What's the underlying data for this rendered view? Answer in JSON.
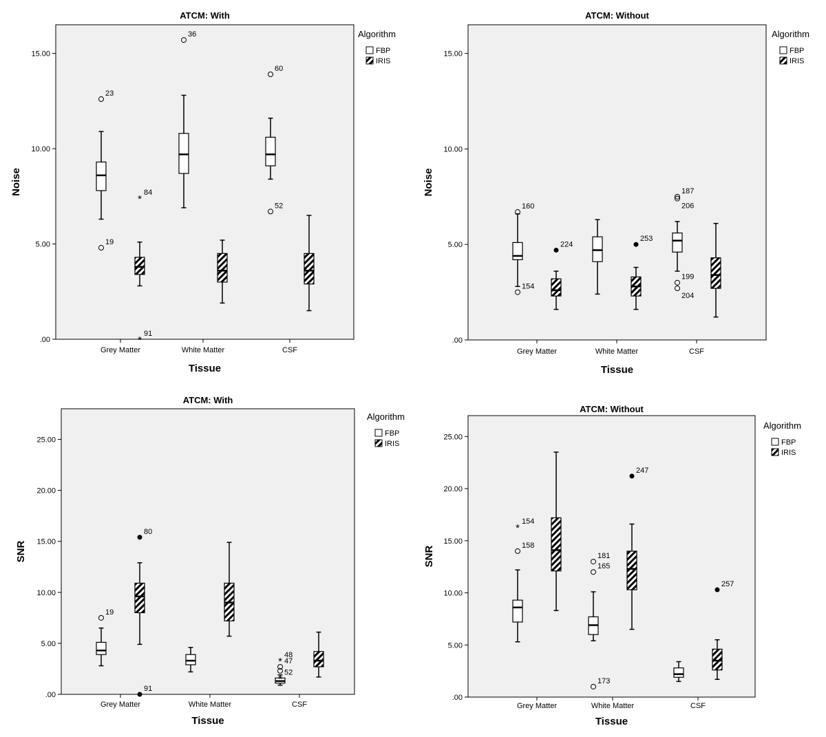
{
  "legend": {
    "title": "Algorithm",
    "items": [
      "FBP",
      "IRIS"
    ]
  },
  "chart_data": [
    {
      "type": "boxplot",
      "title": "ATCM: With",
      "xlabel": "Tissue",
      "ylabel": "Noise",
      "categories": [
        "Grey Matter",
        "White Matter",
        "CSF"
      ],
      "ylim": [
        0,
        16.5
      ],
      "yticks": [
        ".00",
        "5.00",
        "10.00",
        "15.00"
      ],
      "series": [
        {
          "name": "FBP",
          "boxes": [
            {
              "min": 6.3,
              "q1": 7.8,
              "median": 8.6,
              "q3": 9.3,
              "max": 10.9,
              "outliers": [
                {
                  "label": "23",
                  "value": 12.6,
                  "kind": "circle"
                },
                {
                  "label": "19",
                  "value": 4.8,
                  "kind": "circle"
                }
              ]
            },
            {
              "min": 6.9,
              "q1": 8.7,
              "median": 9.7,
              "q3": 10.8,
              "max": 12.8,
              "outliers": [
                {
                  "label": "36",
                  "value": 15.7,
                  "kind": "circle"
                }
              ]
            },
            {
              "min": 8.4,
              "q1": 9.1,
              "median": 9.7,
              "q3": 10.6,
              "max": 11.6,
              "outliers": [
                {
                  "label": "60",
                  "value": 13.9,
                  "kind": "circle"
                },
                {
                  "label": "52",
                  "value": 6.7,
                  "kind": "circle"
                }
              ]
            }
          ]
        },
        {
          "name": "IRIS",
          "boxes": [
            {
              "min": 2.8,
              "q1": 3.4,
              "median": 3.8,
              "q3": 4.3,
              "max": 5.1,
              "outliers": [
                {
                  "label": "84",
                  "value": 7.4,
                  "kind": "star"
                },
                {
                  "label": "91",
                  "value": 0.0,
                  "kind": "star"
                }
              ]
            },
            {
              "min": 1.9,
              "q1": 3.0,
              "median": 3.6,
              "q3": 4.5,
              "max": 5.2,
              "outliers": []
            },
            {
              "min": 1.5,
              "q1": 2.9,
              "median": 3.6,
              "q3": 4.5,
              "max": 6.5,
              "outliers": []
            }
          ]
        }
      ]
    },
    {
      "type": "boxplot",
      "title": "ATCM: Without",
      "xlabel": "Tissue",
      "ylabel": "Noise",
      "categories": [
        "Grey Matter",
        "White Matter",
        "CSF"
      ],
      "ylim": [
        0,
        16.5
      ],
      "yticks": [
        ".00",
        "5.00",
        "10.00",
        "15.00"
      ],
      "series": [
        {
          "name": "FBP",
          "boxes": [
            {
              "min": 2.8,
              "q1": 4.2,
              "median": 4.4,
              "q3": 5.1,
              "max": 6.6,
              "outliers": [
                {
                  "label": "160",
                  "value": 6.7,
                  "kind": "circle"
                },
                {
                  "label": "154",
                  "value": 2.5,
                  "kind": "circle"
                }
              ]
            },
            {
              "min": 2.4,
              "q1": 4.1,
              "median": 4.7,
              "q3": 5.4,
              "max": 6.3,
              "outliers": []
            },
            {
              "min": 3.6,
              "q1": 4.6,
              "median": 5.2,
              "q3": 5.6,
              "max": 6.2,
              "outliers": [
                {
                  "label": "187",
                  "value": 7.5,
                  "kind": "circle"
                },
                {
                  "label": "206",
                  "value": 7.4,
                  "kind": "circle"
                },
                {
                  "label": "199",
                  "value": 3.0,
                  "kind": "circle"
                },
                {
                  "label": "204",
                  "value": 2.7,
                  "kind": "circle"
                }
              ]
            }
          ]
        },
        {
          "name": "IRIS",
          "boxes": [
            {
              "min": 1.6,
              "q1": 2.3,
              "median": 2.6,
              "q3": 3.2,
              "max": 3.6,
              "outliers": [
                {
                  "label": "224",
                  "value": 4.7,
                  "kind": "dot"
                }
              ]
            },
            {
              "min": 1.6,
              "q1": 2.3,
              "median": 2.8,
              "q3": 3.3,
              "max": 3.8,
              "outliers": [
                {
                  "label": "253",
                  "value": 5.0,
                  "kind": "dot"
                }
              ]
            },
            {
              "min": 1.2,
              "q1": 2.7,
              "median": 3.4,
              "q3": 4.3,
              "max": 6.1,
              "outliers": []
            }
          ]
        }
      ]
    },
    {
      "type": "boxplot",
      "title": "ATCM: With",
      "xlabel": "Tissue",
      "ylabel": "SNR",
      "categories": [
        "Grey Matter",
        "White Matter",
        "CSF"
      ],
      "ylim": [
        0,
        28
      ],
      "yticks": [
        ".00",
        "5.00",
        "10.00",
        "15.00",
        "20.00",
        "25.00"
      ],
      "series": [
        {
          "name": "FBP",
          "boxes": [
            {
              "min": 2.8,
              "q1": 3.9,
              "median": 4.3,
              "q3": 5.1,
              "max": 6.5,
              "outliers": [
                {
                  "label": "19",
                  "value": 7.5,
                  "kind": "circle"
                }
              ]
            },
            {
              "min": 2.2,
              "q1": 2.9,
              "median": 3.3,
              "q3": 3.9,
              "max": 4.6,
              "outliers": []
            },
            {
              "min": 0.9,
              "q1": 1.1,
              "median": 1.3,
              "q3": 1.6,
              "max": 1.9,
              "outliers": [
                {
                  "label": "47",
                  "value": 2.7,
                  "kind": "circle"
                },
                {
                  "label": "",
                  "value": 2.3,
                  "kind": "circle"
                },
                {
                  "label": "48",
                  "value": 3.3,
                  "kind": "star"
                },
                {
                  "label": "52",
                  "value": 1.6,
                  "kind": "star"
                }
              ]
            }
          ]
        },
        {
          "name": "IRIS",
          "boxes": [
            {
              "min": 4.9,
              "q1": 8.0,
              "median": 9.6,
              "q3": 10.9,
              "max": 12.9,
              "outliers": [
                {
                  "label": "80",
                  "value": 15.4,
                  "kind": "dot"
                },
                {
                  "label": "91",
                  "value": 0.0,
                  "kind": "dot"
                }
              ]
            },
            {
              "min": 5.7,
              "q1": 7.2,
              "median": 9.0,
              "q3": 10.9,
              "max": 14.9,
              "outliers": []
            },
            {
              "min": 1.7,
              "q1": 2.7,
              "median": 3.3,
              "q3": 4.2,
              "max": 6.1,
              "outliers": []
            }
          ]
        }
      ]
    },
    {
      "type": "boxplot",
      "title": "ATCM: Without",
      "xlabel": "Tissue",
      "ylabel": "SNR",
      "categories": [
        "Grey Matter",
        "White Matter",
        "CSF"
      ],
      "ylim": [
        0,
        27
      ],
      "yticks": [
        ".00",
        "5.00",
        "10.00",
        "15.00",
        "20.00",
        "25.00"
      ],
      "series": [
        {
          "name": "FBP",
          "boxes": [
            {
              "min": 5.3,
              "q1": 7.2,
              "median": 8.6,
              "q3": 9.3,
              "max": 12.2,
              "outliers": [
                {
                  "label": "154",
                  "value": 16.3,
                  "kind": "star"
                },
                {
                  "label": "158",
                  "value": 14.0,
                  "kind": "circle"
                }
              ]
            },
            {
              "min": 5.4,
              "q1": 6.0,
              "median": 6.9,
              "q3": 7.7,
              "max": 10.1,
              "outliers": [
                {
                  "label": "181",
                  "value": 13.0,
                  "kind": "circle"
                },
                {
                  "label": "165",
                  "value": 12.0,
                  "kind": "circle"
                },
                {
                  "label": "173",
                  "value": 1.0,
                  "kind": "circle"
                }
              ]
            },
            {
              "min": 1.5,
              "q1": 1.9,
              "median": 2.2,
              "q3": 2.8,
              "max": 3.4,
              "outliers": []
            }
          ]
        },
        {
          "name": "IRIS",
          "boxes": [
            {
              "min": 8.3,
              "q1": 12.1,
              "median": 14.1,
              "q3": 17.2,
              "max": 23.5,
              "outliers": []
            },
            {
              "min": 6.5,
              "q1": 10.3,
              "median": 12.3,
              "q3": 14.0,
              "max": 16.6,
              "outliers": [
                {
                  "label": "247",
                  "value": 21.2,
                  "kind": "dot"
                }
              ]
            },
            {
              "min": 1.7,
              "q1": 2.6,
              "median": 3.5,
              "q3": 4.6,
              "max": 5.5,
              "outliers": [
                {
                  "label": "257",
                  "value": 10.3,
                  "kind": "dot"
                }
              ]
            }
          ]
        }
      ]
    }
  ]
}
